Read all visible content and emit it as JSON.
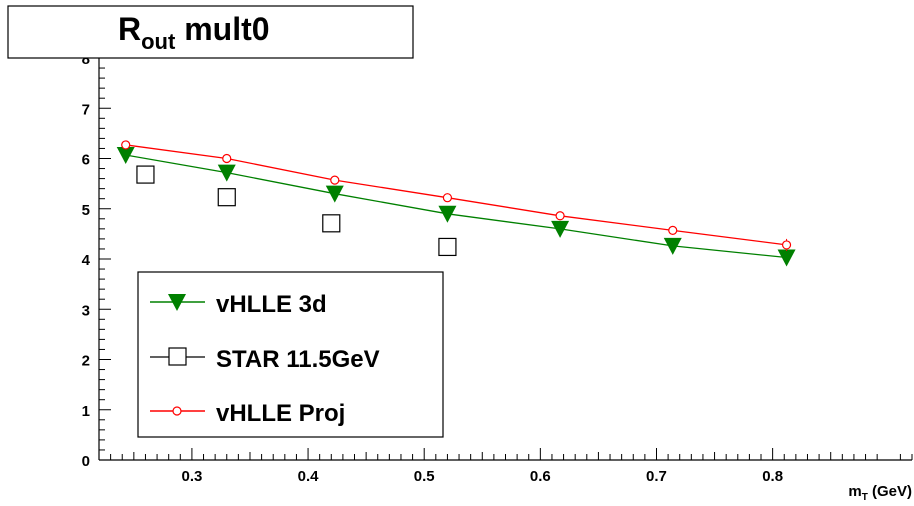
{
  "chart_data": {
    "type": "scatter",
    "title_main": "R",
    "title_sub": "out",
    "title_rest": " mult0",
    "xlabel_main": "m",
    "xlabel_sub": "T",
    "xlabel_rest": " (GeV)",
    "ylabel": "",
    "xlim": [
      0.22,
      0.92
    ],
    "ylim": [
      0,
      8
    ],
    "x_ticks": [
      0.3,
      0.4,
      0.5,
      0.6,
      0.7,
      0.8
    ],
    "x_tick_labels": [
      "0.3",
      "0.4",
      "0.5",
      "0.6",
      "0.7",
      "0.8"
    ],
    "y_ticks": [
      0,
      1,
      2,
      3,
      4,
      5,
      6,
      7,
      8
    ],
    "y_tick_labels": [
      "0",
      "1",
      "2",
      "3",
      "4",
      "5",
      "6",
      "7",
      "8"
    ],
    "grid": false,
    "legend_position": "bottom-left",
    "series": [
      {
        "name": "vHLLE 3d",
        "marker": "triangle-down",
        "color": "#008000",
        "line": true,
        "x": [
          0.243,
          0.33,
          0.423,
          0.52,
          0.617,
          0.714,
          0.812
        ],
        "y": [
          6.07,
          5.72,
          5.3,
          4.9,
          4.6,
          4.26,
          4.03
        ]
      },
      {
        "name": "STAR 11.5GeV",
        "marker": "open-square",
        "color": "#000000",
        "line": false,
        "x": [
          0.26,
          0.33,
          0.42,
          0.52
        ],
        "y": [
          5.68,
          5.23,
          4.71,
          4.24
        ]
      },
      {
        "name": "vHLLE Proj",
        "marker": "open-circle",
        "color": "#ff0000",
        "line": true,
        "x": [
          0.243,
          0.33,
          0.423,
          0.52,
          0.617,
          0.714,
          0.812
        ],
        "y": [
          6.27,
          6.0,
          5.57,
          5.22,
          4.86,
          4.57,
          4.28
        ],
        "yerr": [
          0.03,
          0.03,
          0.04,
          0.04,
          0.05,
          0.07,
          0.12
        ]
      }
    ]
  }
}
